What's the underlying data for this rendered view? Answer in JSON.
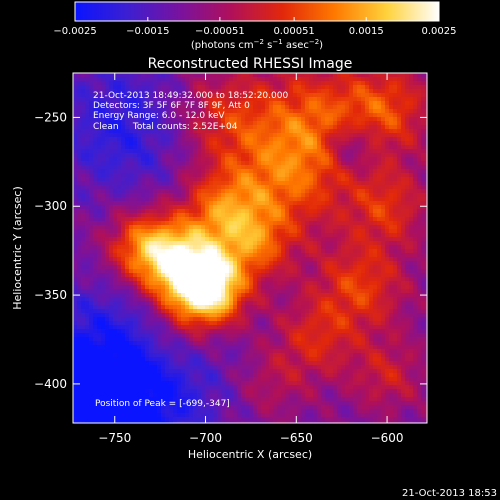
{
  "chart_data": {
    "type": "heatmap",
    "title": "Reconstructed RHESSI Image",
    "xlabel": "Heliocentric X (arcsec)",
    "ylabel": "Heliocentric Y (arcsec)",
    "xlim": [
      -773,
      -578
    ],
    "ylim": [
      -422,
      -225
    ],
    "x_ticks": [
      -750,
      -700,
      -650,
      -600
    ],
    "x_tick_labels": [
      "−750",
      "−700",
      "−650",
      "−600"
    ],
    "y_ticks": [
      -250,
      -300,
      -350,
      -400
    ],
    "y_tick_labels": [
      "−250",
      "−300",
      "−350",
      "−400"
    ],
    "colorbar": {
      "range": [
        -0.0025,
        0.0025
      ],
      "ticks": [
        -0.0025,
        -0.0015,
        -0.00051,
        0.00051,
        0.0015,
        0.0025
      ],
      "tick_labels": [
        "−0.0025",
        "−0.0015",
        "−0.00051",
        "0.00051",
        "0.0015",
        "0.0025"
      ],
      "unit_prefix": "(photons cm",
      "unit_exp1": "−2",
      "unit_mid": " s",
      "unit_exp2": "−1",
      "unit_mid2": " asec",
      "unit_exp3": "−2",
      "unit_suffix": ")",
      "colormap": [
        "#0a14ff",
        "#3c1fd2",
        "#7812a0",
        "#b0105a",
        "#e2280a",
        "#ff7a00",
        "#ffd23c",
        "#ffffff"
      ]
    },
    "annotations": [
      "21-Oct-2013 18:49:32.000 to 18:52:20.000",
      "Detectors: 3F 5F 6F 7F 8F 9F, Att 0",
      "Energy Range: 6.0 - 12.0 keV",
      "Clean     Total counts: 2.52E+04"
    ],
    "peak_label": "Position of Peak = [-699,-347]",
    "peak": {
      "x": -699,
      "y": -347
    },
    "footer_timestamp": "21-Oct-2013 18:53"
  }
}
